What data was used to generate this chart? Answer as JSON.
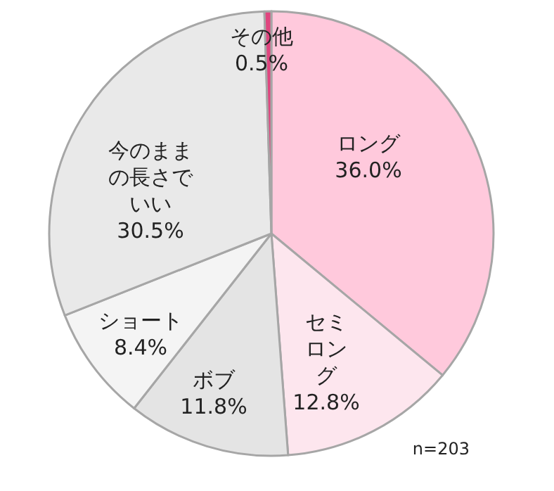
{
  "chart_data": {
    "type": "pie",
    "categories": [
      "ロング",
      "セミロング",
      "ボブ",
      "ショート",
      "今のままの長さでいい",
      "その他"
    ],
    "values": [
      36.0,
      12.8,
      11.8,
      8.4,
      30.5,
      0.5
    ],
    "colors": [
      "#ffc9dc",
      "#fde6ee",
      "#e4e4e4",
      "#f4f4f4",
      "#e9e9e9",
      "#e0457f"
    ],
    "value_labels": [
      "36.0%",
      "12.8%",
      "11.8%",
      "8.4%",
      "30.5%",
      "0.5%"
    ],
    "annotations": [
      "n=203"
    ]
  }
}
